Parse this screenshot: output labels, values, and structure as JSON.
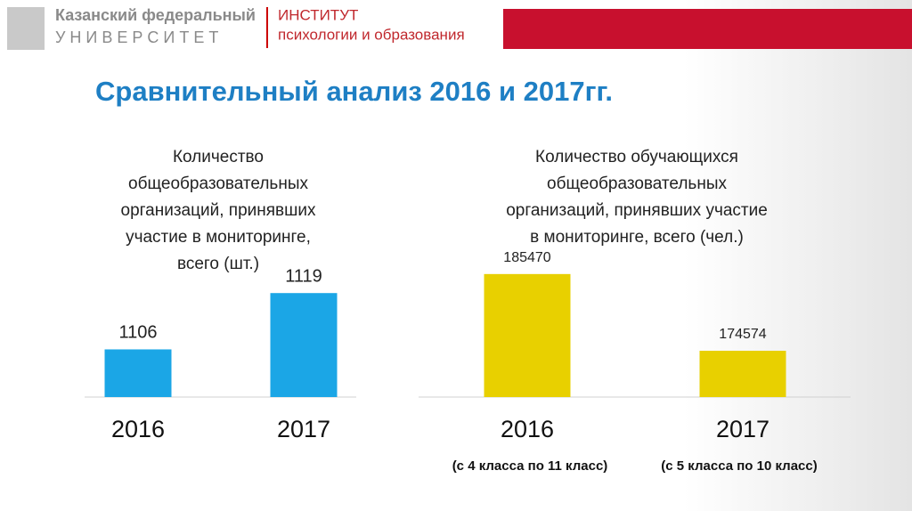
{
  "header": {
    "university_line1": "Казанский федеральный",
    "university_line2": "У Н И В Е Р С И Т Е Т",
    "institute_line1": "ИНСТИТУТ",
    "institute_line2": "психологии и образования"
  },
  "slide_title": "Сравнительный анализ 2016 и 2017гг.",
  "chart_data": [
    {
      "type": "bar",
      "title": [
        "Количество",
        "общеобразовательных",
        "организаций, принявших",
        "участие в мониторинге,",
        "всего (шт.)"
      ],
      "categories": [
        "2016",
        "2017"
      ],
      "values": [
        1106,
        1119
      ],
      "color": "#1ba6e6",
      "ylim": [
        1095,
        1125
      ]
    },
    {
      "type": "bar",
      "title": [
        "Количество обучающихся",
        "общеобразовательных",
        "организаций, принявших  участие",
        "в мониторинге, всего (чел.)"
      ],
      "categories": [
        "2016",
        "2017"
      ],
      "values": [
        185470,
        174574
      ],
      "color": "#e8d000",
      "ylim": [
        168000,
        190000
      ],
      "category_notes": [
        "(с 4 класса по 11 класс)",
        "(с 5 класса по 10 класс)"
      ]
    }
  ]
}
